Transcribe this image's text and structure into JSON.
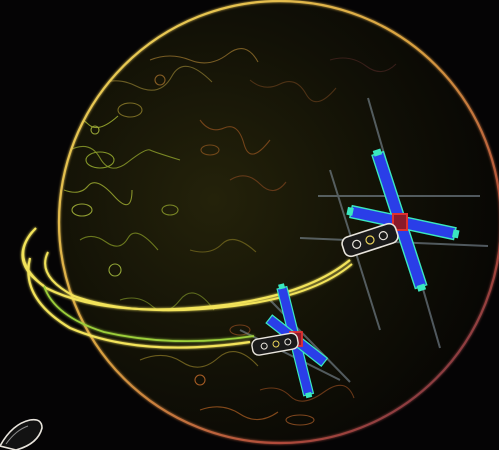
{
  "image": {
    "kind": "edge-detected illustration",
    "subject": "planet-with-orbiting-satellites",
    "palette": {
      "background": "#050405",
      "planet_shadow": "#0d0c06",
      "planet_glow": "#2a2a0c",
      "rim_warm": "#c0603a",
      "rim_yellow": "#e8d25a",
      "texture_olive": "#7a8a2a",
      "texture_orange": "#c7652a",
      "orbit_trail": "#f2e35a",
      "orbit_trail_inner": "#9ccf3a",
      "panel_blue": "#2a3ee8",
      "panel_edge": "#3ae8c0",
      "core_red": "#e03030",
      "beam_gray": "#8a9aa8",
      "capsule_white": "#e8e4dc"
    },
    "icons": [
      "planet-icon",
      "satellite-icon",
      "orbit-trail-icon",
      "rocket-icon"
    ]
  }
}
